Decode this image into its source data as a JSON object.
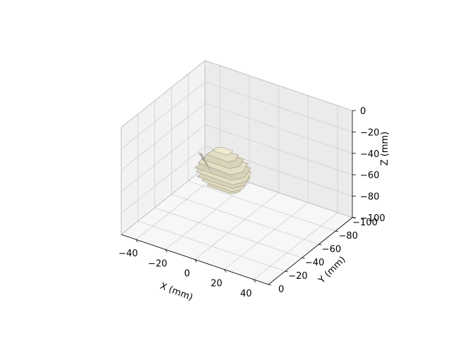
{
  "chart_data": {
    "type": "surface3d",
    "title": "",
    "xlabel": "X (mm)",
    "ylabel": "Y (mm)",
    "zlabel": "Z (mm)",
    "xlim": [
      -50,
      50
    ],
    "ylim": [
      -100,
      0
    ],
    "zlim": [
      -100,
      0
    ],
    "x_ticks": [
      -40,
      -20,
      0,
      20,
      40
    ],
    "y_ticks": [
      -100,
      -80,
      -60,
      -40,
      -20,
      0
    ],
    "z_ticks": [
      0,
      -20,
      -40,
      -60,
      -80,
      -100
    ],
    "x_tick_labels": [
      "−40",
      "−20",
      "0",
      "20",
      "40"
    ],
    "y_tick_labels": [
      "−100",
      "−80",
      "−60",
      "−40",
      "−20",
      "0"
    ],
    "z_tick_labels": [
      "0",
      "−20",
      "−40",
      "−60",
      "−80",
      "−100"
    ],
    "grid": true,
    "object": {
      "description_visible": "voxel surface",
      "x_extent": [
        -22,
        8
      ],
      "y_extent": [
        -60,
        -40
      ],
      "z_extent": [
        -66,
        -34
      ]
    },
    "colors": {
      "pane_back": "#ebebeb",
      "pane_side": "#f2f2f2",
      "pane_floor": "#f7f7f7",
      "grid": "#cfcfcf",
      "surface_light": "#efe9cf",
      "surface_dark": "#7d7a6e"
    }
  }
}
